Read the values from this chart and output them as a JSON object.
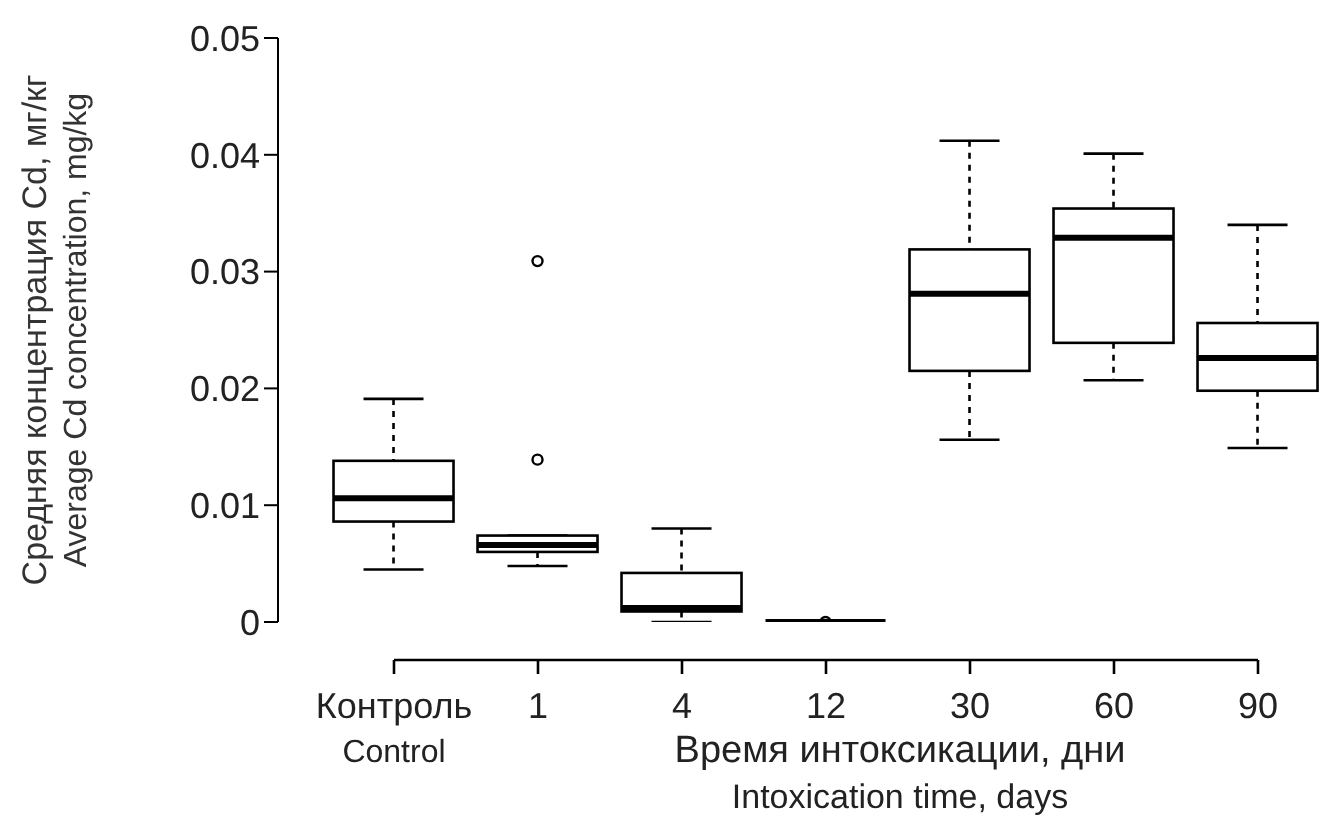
{
  "chart_data": {
    "type": "box",
    "categories": [
      "Контроль\nControl",
      "1",
      "4",
      "12",
      "30",
      "60",
      "90"
    ],
    "boxes": [
      {
        "low": 0.0045,
        "q1": 0.0086,
        "median": 0.0106,
        "q3": 0.0138,
        "high": 0.0191
      },
      {
        "low": 0.0048,
        "q1": 0.006,
        "median": 0.0066,
        "q3": 0.0074,
        "high": 0.0074,
        "outliers": [
          0.0139,
          0.0309
        ]
      },
      {
        "low": 0,
        "q1": 0.0009,
        "median": 0.0012,
        "q3": 0.0042,
        "high": 0.008
      },
      {
        "low": 0,
        "q1": 0,
        "median": 0,
        "q3": 0,
        "high": 0,
        "outliers": [
          0
        ]
      },
      {
        "low": 0.0156,
        "q1": 0.0215,
        "median": 0.0281,
        "q3": 0.0319,
        "high": 0.0412
      },
      {
        "low": 0.0207,
        "q1": 0.0239,
        "median": 0.0329,
        "q3": 0.0354,
        "high": 0.0401
      },
      {
        "low": 0.0149,
        "q1": 0.0198,
        "median": 0.0226,
        "q3": 0.0256,
        "high": 0.034
      }
    ],
    "color": "#000000",
    "xlabel": "Время интоксикации, дни\nIntoxication time, days",
    "ylabel": "Средняя концентрация Cd, мг/кг\nAverage Cd concentration, mg/kg",
    "ylim": [
      0,
      0.05
    ],
    "yticks": [
      0,
      0.01,
      0.02,
      0.03,
      0.04,
      0.05
    ],
    "grid": false,
    "legend": false
  }
}
